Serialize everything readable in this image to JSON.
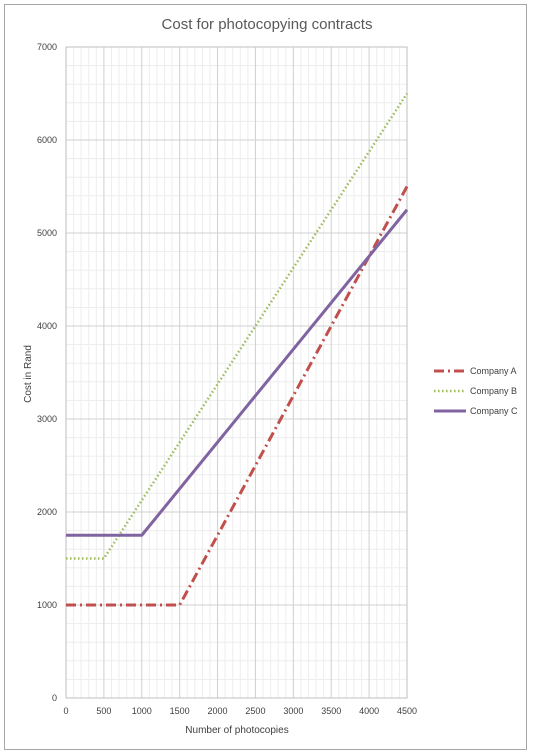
{
  "chart_data": {
    "type": "line",
    "title": "Cost for photocopying contracts",
    "xlabel": "Number of photocopies",
    "ylabel": "Cost in Rand",
    "xlim": [
      0,
      4500
    ],
    "ylim": [
      0,
      7000
    ],
    "x_ticks": [
      0,
      500,
      1000,
      1500,
      2000,
      2500,
      3000,
      3500,
      4000,
      4500
    ],
    "y_ticks": [
      0,
      1000,
      2000,
      3000,
      4000,
      5000,
      6000,
      7000
    ],
    "x_tick_labels": [
      "0",
      "500",
      "1000",
      "1500",
      "2000",
      "2500",
      "3000",
      "3500",
      "4000",
      "4500"
    ],
    "y_tick_labels": [
      "0",
      "1000",
      "2000",
      "3000",
      "4000",
      "5000",
      "6000",
      "7000"
    ],
    "grid": true,
    "legend_position": "right",
    "series": [
      {
        "name": "Company A",
        "color": "#c0504d",
        "style": "dash-dot",
        "points": [
          [
            0,
            1000
          ],
          [
            1500,
            1000
          ],
          [
            4500,
            5500
          ]
        ]
      },
      {
        "name": "Company B",
        "color": "#9bbb59",
        "style": "dotted",
        "points": [
          [
            0,
            1500
          ],
          [
            500,
            1500
          ],
          [
            4500,
            6500
          ]
        ]
      },
      {
        "name": "Company C",
        "color": "#8064a2",
        "style": "solid",
        "points": [
          [
            0,
            1750
          ],
          [
            1000,
            1750
          ],
          [
            4500,
            5250
          ]
        ]
      }
    ]
  }
}
